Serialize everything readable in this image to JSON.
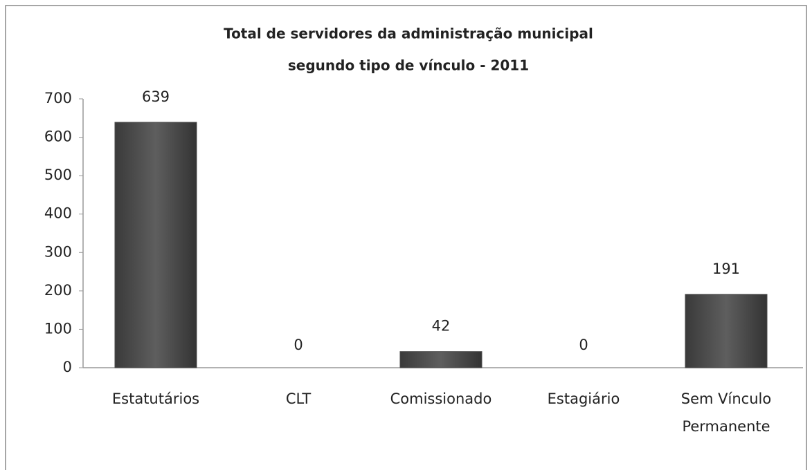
{
  "chart_data": {
    "type": "bar",
    "title": [
      "Total de servidores da administração municipal",
      "segundo tipo de vínculo - 2011"
    ],
    "categories": [
      "Estatutários",
      "CLT",
      "Comissionado",
      "Estagiário",
      "Sem Vínculo Permanente"
    ],
    "values": [
      639,
      0,
      42,
      0,
      191
    ],
    "color": "#4a4a4a",
    "ylim": [
      0,
      700
    ],
    "yticks": [
      0,
      100,
      200,
      300,
      400,
      500,
      600,
      700
    ],
    "grid": false
  }
}
